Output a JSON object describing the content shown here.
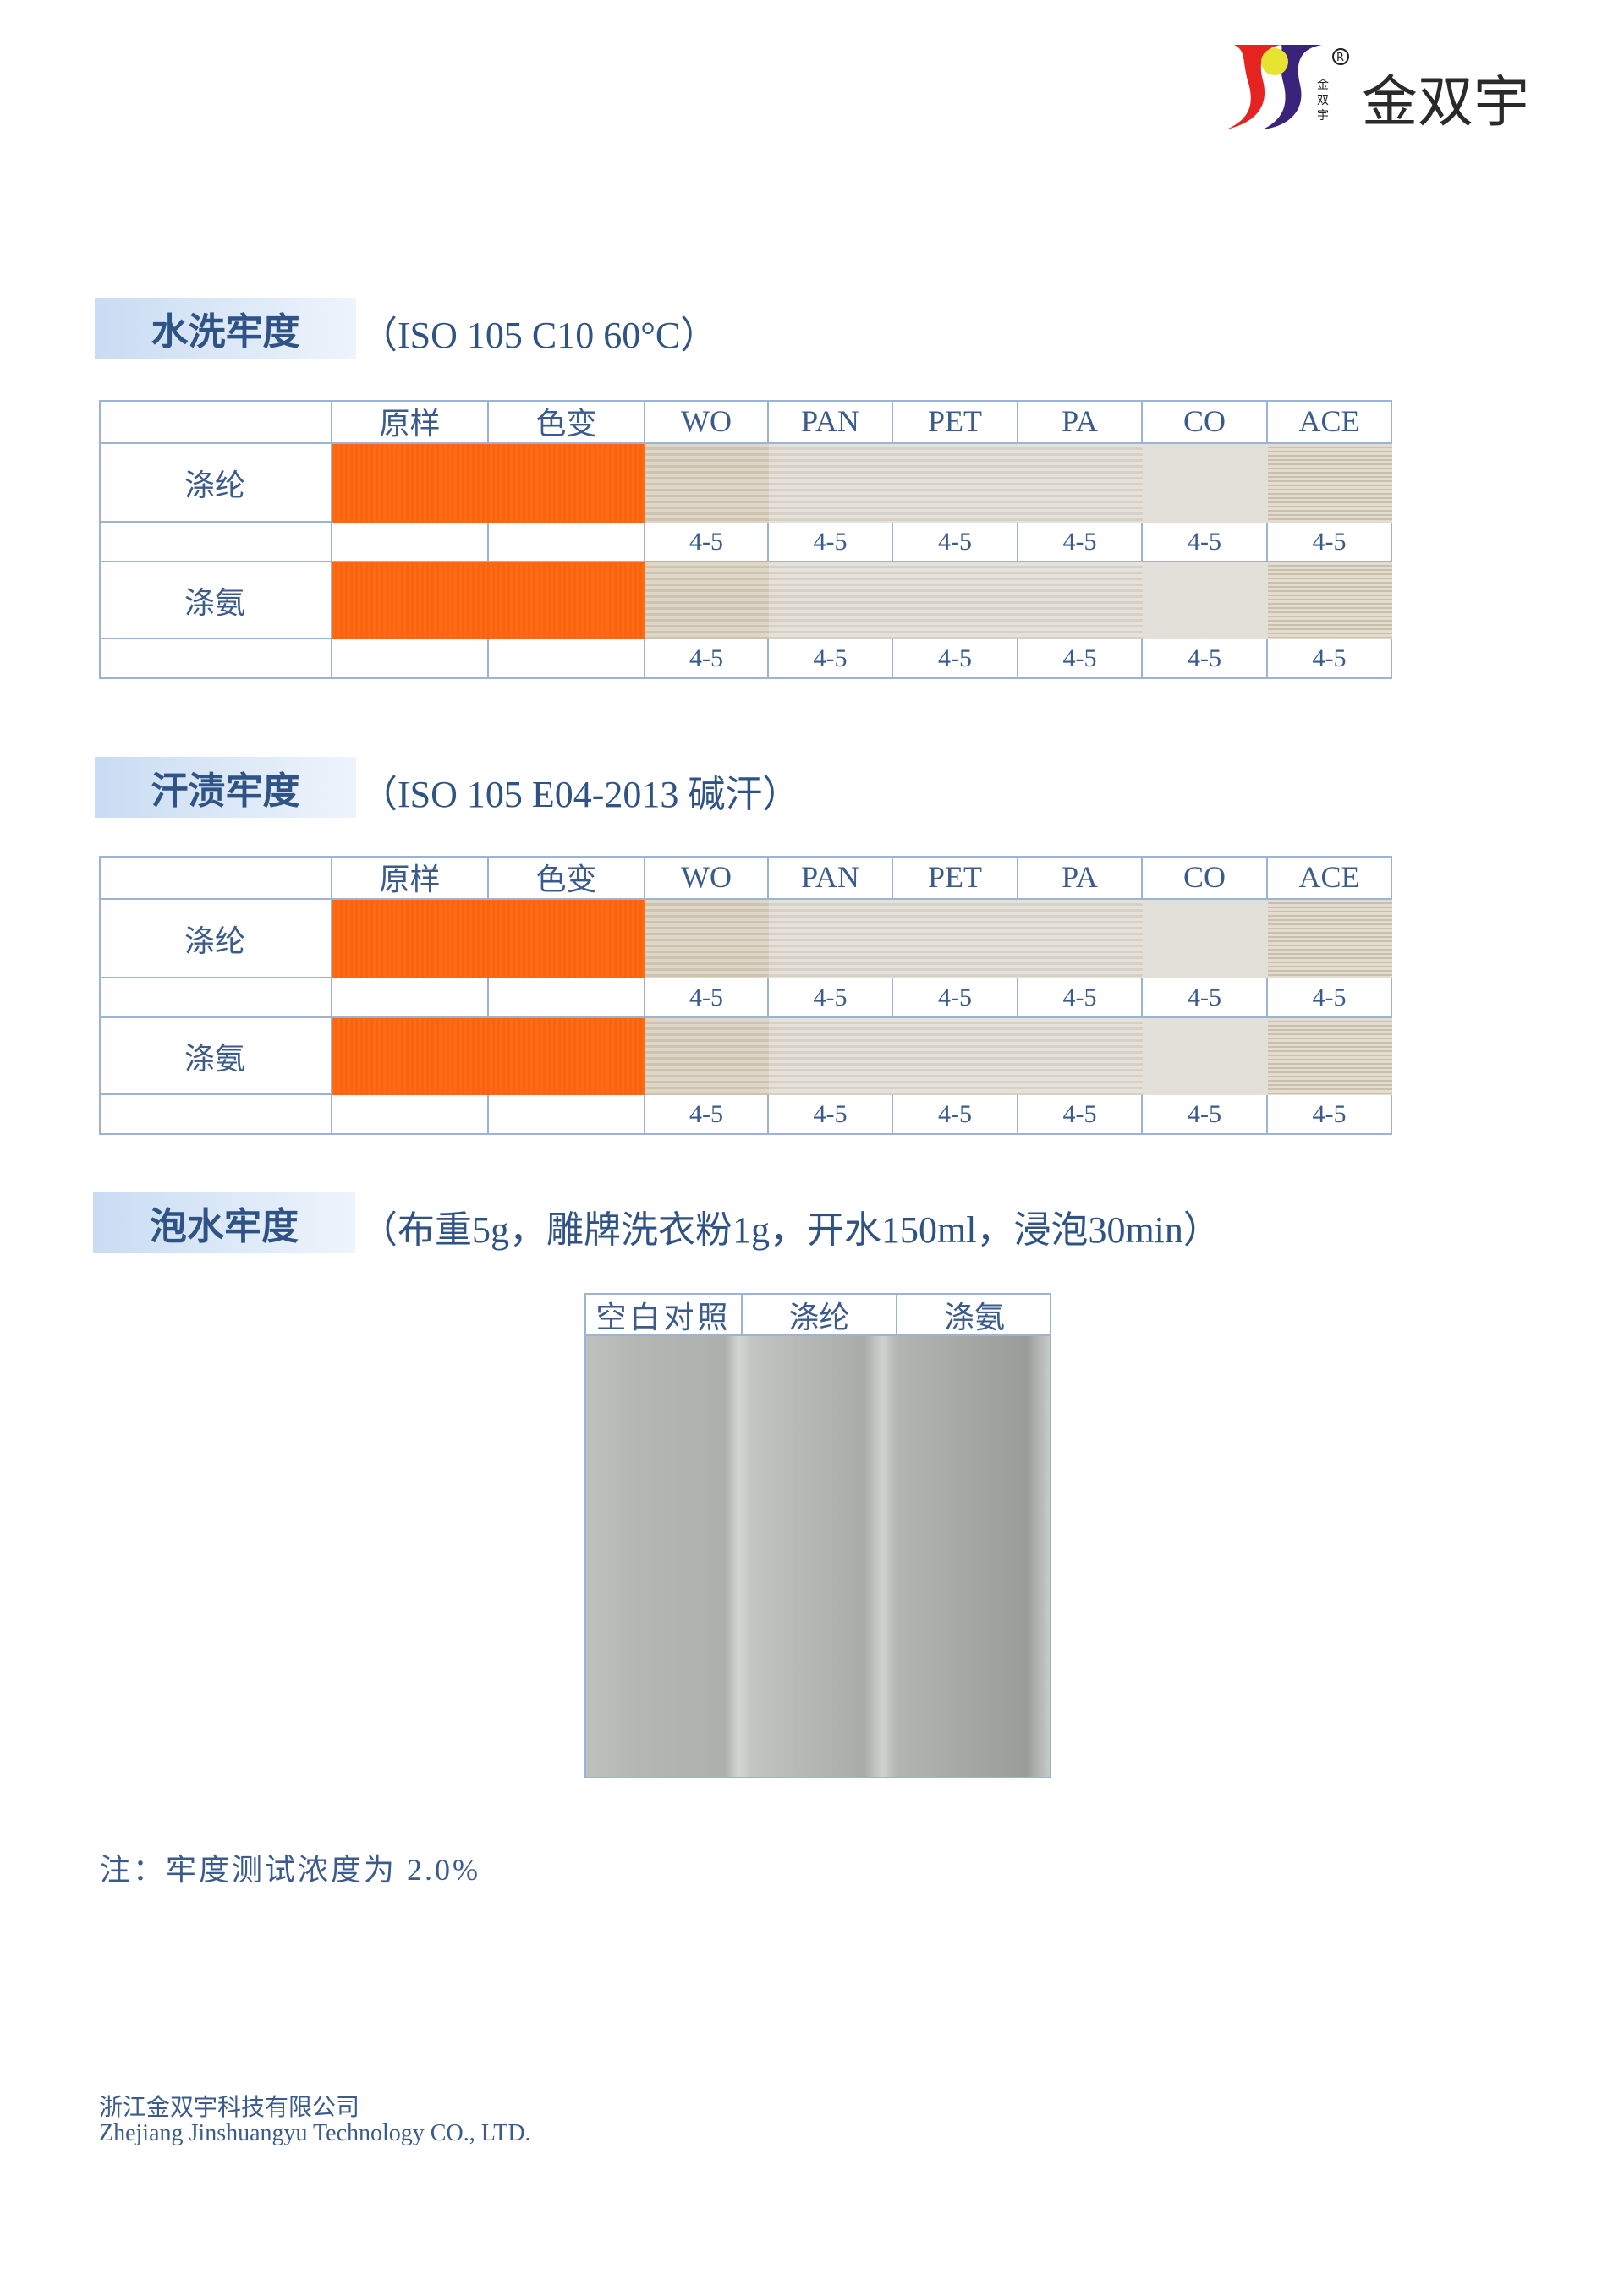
{
  "logo": {
    "brand_text": "金双宇",
    "mark_text": "金双宇",
    "registered": "®",
    "colors": {
      "red": "#e52421",
      "purple": "#3a237a",
      "yellow": "#e8e230"
    }
  },
  "sections": [
    {
      "title": "水洗牢度",
      "spec": "（ISO 105 C10 60°C）"
    },
    {
      "title": "汗渍牢度",
      "spec": "（ISO 105 E04-2013 碱汗）"
    },
    {
      "title": "泡水牢度",
      "spec": "（布重5g，雕牌洗衣粉1g，开水150ml，浸泡30min）"
    }
  ],
  "fastness_tables": [
    {
      "headers": [
        "",
        "原样",
        "色变",
        "WO",
        "PAN",
        "PET",
        "PA",
        "CO",
        "ACE"
      ],
      "rows": [
        {
          "fabric": "涤纶",
          "scores": [
            "4-5",
            "4-5",
            "4-5",
            "4-5",
            "4-5",
            "4-5"
          ]
        },
        {
          "fabric": "涤氨",
          "scores": [
            "4-5",
            "4-5",
            "4-5",
            "4-5",
            "4-5",
            "4-5"
          ]
        }
      ]
    },
    {
      "headers": [
        "",
        "原样",
        "色变",
        "WO",
        "PAN",
        "PET",
        "PA",
        "CO",
        "ACE"
      ],
      "rows": [
        {
          "fabric": "涤纶",
          "scores": [
            "4-5",
            "4-5",
            "4-5",
            "4-5",
            "4-5",
            "4-5"
          ]
        },
        {
          "fabric": "涤氨",
          "scores": [
            "4-5",
            "4-5",
            "4-5",
            "4-5",
            "4-5",
            "4-5"
          ]
        }
      ]
    }
  ],
  "soak_table": {
    "headers": [
      "空白对照",
      "涤纶",
      "涤氨"
    ]
  },
  "note": "注：牢度测试浓度为 2.0%",
  "footer": {
    "company_cn": "浙江金双宇科技有限公司",
    "company_en": "Zhejiang Jinshuangyu Technology CO., LTD."
  },
  "colors": {
    "text": "#3b5b8c",
    "border": "#9bb3d4",
    "sample_orange": "#ff6a12"
  }
}
